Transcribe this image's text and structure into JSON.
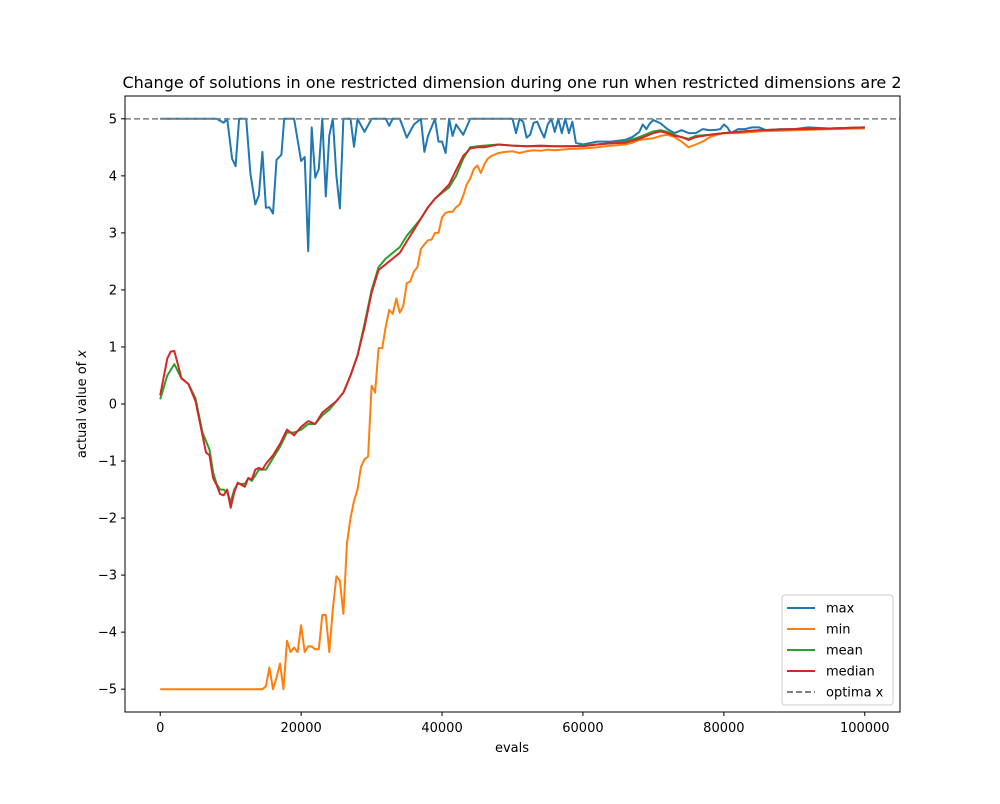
{
  "chart_data": {
    "type": "line",
    "title": "Change of solutions in one restricted dimension during one run when restricted dimensions are 2",
    "xlabel": "evals",
    "ylabel": "actual value of x",
    "xlim": [
      -5000,
      105000
    ],
    "ylim": [
      -5.4,
      5.4
    ],
    "xticks": [
      0,
      20000,
      40000,
      60000,
      80000,
      100000
    ],
    "xtick_labels": [
      "0",
      "20000",
      "40000",
      "60000",
      "80000",
      "100000"
    ],
    "yticks": [
      -5,
      -4,
      -3,
      -2,
      -1,
      0,
      1,
      2,
      3,
      4,
      5
    ],
    "ytick_labels": [
      "−5",
      "−4",
      "−3",
      "−2",
      "−1",
      "0",
      "1",
      "2",
      "3",
      "4",
      "5"
    ],
    "grid": false,
    "legend_position": "lower-right",
    "reference_line": {
      "name": "optima x",
      "y": 5,
      "style": "dashed",
      "color": "#7f7f7f"
    },
    "series": [
      {
        "name": "max",
        "color": "#1f77b4",
        "x": [
          0,
          2000,
          4000,
          6000,
          8000,
          9000,
          9500,
          10200,
          10700,
          11200,
          12200,
          12800,
          13500,
          14000,
          14500,
          15000,
          15500,
          16000,
          16500,
          17200,
          17600,
          18000,
          19000,
          20000,
          20500,
          21000,
          21500,
          22000,
          22500,
          23000,
          23500,
          24000,
          24500,
          25000,
          25500,
          26000,
          26500,
          27000,
          27500,
          28000,
          29000,
          30000,
          31000,
          32000,
          32500,
          33000,
          33500,
          34000,
          35000,
          36000,
          37000,
          37500,
          38000,
          39000,
          39500,
          40000,
          40500,
          41000,
          41500,
          42000,
          43000,
          44000,
          46000,
          48000,
          50000,
          50500,
          51000,
          51500,
          52000,
          52500,
          53000,
          53500,
          54000,
          54500,
          55000,
          55500,
          56000,
          56500,
          57000,
          57500,
          58000,
          58500,
          59000,
          60000,
          62000,
          64000,
          66000,
          67000,
          68000,
          68500,
          69000,
          69500,
          70000,
          71000,
          72000,
          73000,
          74000,
          75000,
          76000,
          77000,
          78000,
          79000,
          79500,
          80000,
          80500,
          81000,
          82000,
          83000,
          84000,
          85000,
          86000,
          88000,
          90000,
          92000,
          95000,
          100000
        ],
        "y": [
          5.0,
          5.0,
          5.0,
          5.0,
          5.0,
          4.93,
          5.0,
          4.3,
          4.17,
          5.0,
          5.0,
          4.04,
          3.5,
          3.66,
          4.42,
          3.44,
          3.45,
          3.34,
          4.28,
          4.37,
          5.0,
          5.0,
          5.0,
          4.26,
          4.33,
          2.68,
          4.85,
          3.97,
          4.12,
          5.0,
          3.64,
          4.71,
          5.0,
          4.0,
          3.43,
          5.0,
          5.0,
          5.0,
          4.51,
          5.0,
          4.77,
          5.0,
          5.0,
          5.0,
          4.88,
          5.0,
          5.0,
          5.0,
          4.67,
          4.9,
          5.0,
          4.42,
          4.7,
          5.0,
          4.6,
          4.6,
          4.4,
          5.0,
          4.7,
          4.9,
          4.72,
          5.0,
          5.0,
          5.0,
          5.0,
          4.75,
          5.0,
          4.95,
          4.67,
          4.72,
          4.93,
          4.95,
          4.8,
          4.67,
          4.9,
          5.0,
          4.77,
          5.0,
          4.75,
          5.0,
          4.75,
          4.95,
          4.58,
          4.55,
          4.6,
          4.6,
          4.63,
          4.68,
          4.77,
          4.9,
          4.82,
          4.92,
          4.98,
          4.92,
          4.82,
          4.75,
          4.8,
          4.75,
          4.75,
          4.82,
          4.8,
          4.81,
          4.82,
          4.9,
          4.85,
          4.75,
          4.82,
          4.82,
          4.85,
          4.85,
          4.8,
          4.82,
          4.82,
          4.85,
          4.83,
          4.85
        ]
      },
      {
        "name": "min",
        "color": "#ff7f0e",
        "x": [
          0,
          5000,
          10000,
          14500,
          15000,
          15500,
          16000,
          16500,
          17000,
          17500,
          18000,
          18500,
          19000,
          19500,
          20000,
          20500,
          21000,
          21500,
          22000,
          22500,
          23000,
          23500,
          24000,
          24500,
          25000,
          25500,
          26000,
          26500,
          27000,
          27500,
          28000,
          28500,
          29000,
          29500,
          30000,
          30500,
          31000,
          31500,
          32000,
          32500,
          33000,
          33500,
          34000,
          34500,
          35000,
          35500,
          36000,
          36500,
          37000,
          37500,
          38000,
          38500,
          39000,
          39500,
          40000,
          40500,
          41000,
          41500,
          42000,
          42500,
          43000,
          43500,
          44000,
          44500,
          45000,
          45500,
          46000,
          46500,
          47000,
          48000,
          49000,
          50000,
          51000,
          52000,
          53000,
          54000,
          55000,
          56000,
          58000,
          60000,
          62000,
          64000,
          66000,
          67000,
          68000,
          70000,
          71000,
          72000,
          73000,
          74000,
          75000,
          76000,
          77000,
          78000,
          79000,
          80000,
          82000,
          85000,
          90000,
          95000,
          100000
        ],
        "y": [
          -5.0,
          -5.0,
          -5.0,
          -5.0,
          -4.95,
          -4.62,
          -5.0,
          -4.8,
          -4.55,
          -5.0,
          -4.15,
          -4.35,
          -4.27,
          -4.35,
          -3.88,
          -4.35,
          -4.25,
          -4.25,
          -4.3,
          -4.3,
          -3.7,
          -3.7,
          -4.35,
          -3.6,
          -3.02,
          -3.1,
          -3.68,
          -2.45,
          -2.0,
          -1.7,
          -1.5,
          -1.1,
          -0.97,
          -0.92,
          0.32,
          0.2,
          0.98,
          0.98,
          1.35,
          1.65,
          1.58,
          1.85,
          1.6,
          1.72,
          2.12,
          2.15,
          2.32,
          2.4,
          2.72,
          2.8,
          2.87,
          2.88,
          3.0,
          3.0,
          3.27,
          3.35,
          3.37,
          3.37,
          3.45,
          3.5,
          3.65,
          3.85,
          3.95,
          4.12,
          4.18,
          4.05,
          4.2,
          4.3,
          4.35,
          4.4,
          4.42,
          4.43,
          4.4,
          4.43,
          4.45,
          4.44,
          4.46,
          4.45,
          4.47,
          4.48,
          4.5,
          4.53,
          4.55,
          4.58,
          4.63,
          4.66,
          4.7,
          4.72,
          4.68,
          4.6,
          4.5,
          4.55,
          4.6,
          4.68,
          4.72,
          4.75,
          4.75,
          4.78,
          4.8,
          4.82,
          4.83
        ]
      },
      {
        "name": "mean",
        "color": "#2ca02c",
        "x": [
          0,
          1000,
          2000,
          3000,
          4000,
          5000,
          6000,
          7000,
          7500,
          8000,
          8500,
          9000,
          9500,
          10000,
          10500,
          11000,
          12000,
          12500,
          13000,
          14000,
          15000,
          16000,
          17000,
          18000,
          19000,
          20000,
          21000,
          22000,
          23000,
          24000,
          25000,
          26000,
          27000,
          28000,
          29000,
          30000,
          31000,
          32000,
          33000,
          34000,
          35000,
          36000,
          37000,
          38000,
          39000,
          40000,
          41000,
          42000,
          43000,
          44000,
          45000,
          46000,
          48000,
          50000,
          52000,
          54000,
          56000,
          58000,
          60000,
          62000,
          64000,
          66000,
          68000,
          70000,
          71000,
          72000,
          73000,
          74000,
          75000,
          76000,
          78000,
          80000,
          82000,
          85000,
          90000,
          95000,
          100000
        ],
        "y": [
          0.08,
          0.5,
          0.7,
          0.45,
          0.35,
          0.1,
          -0.5,
          -0.8,
          -1.2,
          -1.4,
          -1.5,
          -1.5,
          -1.55,
          -1.72,
          -1.5,
          -1.4,
          -1.4,
          -1.3,
          -1.35,
          -1.15,
          -1.15,
          -0.95,
          -0.75,
          -0.5,
          -0.5,
          -0.45,
          -0.35,
          -0.35,
          -0.2,
          -0.1,
          0.05,
          0.2,
          0.5,
          0.85,
          1.4,
          2.0,
          2.4,
          2.55,
          2.65,
          2.75,
          2.95,
          3.1,
          3.25,
          3.45,
          3.6,
          3.7,
          3.8,
          4.0,
          4.3,
          4.5,
          4.52,
          4.53,
          4.55,
          4.53,
          4.52,
          4.52,
          4.52,
          4.52,
          4.53,
          4.55,
          4.57,
          4.6,
          4.68,
          4.78,
          4.8,
          4.77,
          4.72,
          4.68,
          4.65,
          4.7,
          4.72,
          4.75,
          4.77,
          4.8,
          4.82,
          4.83,
          4.85
        ]
      },
      {
        "name": "median",
        "color": "#d62728",
        "x": [
          0,
          1000,
          1500,
          2000,
          2500,
          3000,
          4000,
          5000,
          6000,
          6500,
          7000,
          7500,
          8000,
          8500,
          9000,
          9500,
          10000,
          10500,
          11000,
          12000,
          12500,
          13000,
          13500,
          14000,
          14500,
          15000,
          16000,
          17000,
          18000,
          19000,
          20000,
          21000,
          22000,
          23000,
          24000,
          25000,
          26000,
          27000,
          28000,
          29000,
          30000,
          31000,
          32000,
          33000,
          34000,
          35000,
          36000,
          37000,
          38000,
          39000,
          40000,
          41000,
          42000,
          43000,
          44000,
          45000,
          46000,
          48000,
          50000,
          52000,
          54000,
          56000,
          58000,
          60000,
          62000,
          64000,
          66000,
          68000,
          70000,
          71000,
          72000,
          73000,
          74000,
          75000,
          76000,
          78000,
          80000,
          82000,
          85000,
          90000,
          95000,
          100000
        ],
        "y": [
          0.15,
          0.8,
          0.92,
          0.93,
          0.7,
          0.45,
          0.35,
          0.05,
          -0.55,
          -0.85,
          -0.9,
          -1.3,
          -1.42,
          -1.58,
          -1.6,
          -1.5,
          -1.82,
          -1.55,
          -1.38,
          -1.45,
          -1.3,
          -1.32,
          -1.15,
          -1.12,
          -1.15,
          -1.05,
          -0.9,
          -0.7,
          -0.45,
          -0.55,
          -0.4,
          -0.3,
          -0.35,
          -0.15,
          -0.05,
          0.05,
          0.2,
          0.5,
          0.85,
          1.35,
          1.95,
          2.35,
          2.45,
          2.55,
          2.65,
          2.85,
          3.05,
          3.25,
          3.45,
          3.6,
          3.72,
          3.85,
          4.1,
          4.35,
          4.48,
          4.5,
          4.5,
          4.55,
          4.53,
          4.52,
          4.53,
          4.52,
          4.52,
          4.52,
          4.55,
          4.57,
          4.58,
          4.65,
          4.75,
          4.78,
          4.75,
          4.7,
          4.68,
          4.63,
          4.68,
          4.72,
          4.75,
          4.77,
          4.8,
          4.82,
          4.83,
          4.85
        ]
      }
    ]
  }
}
